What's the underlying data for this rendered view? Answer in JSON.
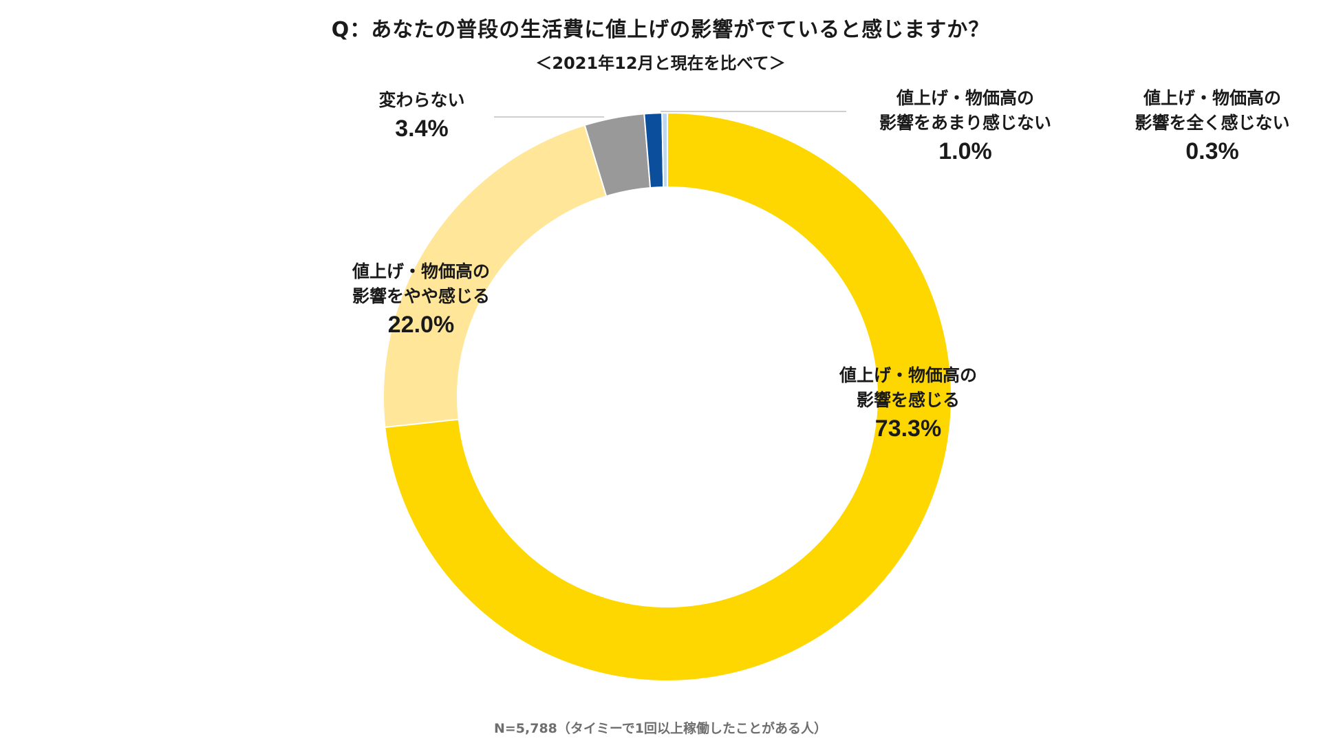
{
  "header": {
    "title": "Q：あなたの普段の生活費に値上げの影響がでていると感じますか？",
    "subtitle": "＜2021年12月と現在を比べて＞"
  },
  "footer": {
    "note": "N=5,788（タイミーで1回以上稼働したことがある人）"
  },
  "chart_data": {
    "type": "pie",
    "donut": true,
    "title": "Q：あなたの普段の生活費に値上げの影響がでていると感じますか？",
    "subtitle": "＜2021年12月と現在を比べて＞",
    "unit": "%",
    "slices": [
      {
        "name_line1": "値上げ・物価高の",
        "name_line2": "影響を感じる",
        "value": 73.3,
        "label": "73.3%",
        "color": "#FFD700"
      },
      {
        "name_line1": "値上げ・物価高の",
        "name_line2": "影響をやや感じる",
        "value": 22.0,
        "label": "22.0%",
        "color": "#FFE699"
      },
      {
        "name_line1": "変わらない",
        "name_line2": "",
        "value": 3.4,
        "label": "3.4%",
        "color": "#999999"
      },
      {
        "name_line1": "値上げ・物価高の",
        "name_line2": "影響をあまり感じない",
        "value": 1.0,
        "label": "1.0%",
        "color": "#0B4F9C"
      },
      {
        "name_line1": "値上げ・物価高の",
        "name_line2": "影響を全く感じない",
        "value": 0.3,
        "label": "0.3%",
        "color": "#BDD7EE"
      }
    ]
  }
}
